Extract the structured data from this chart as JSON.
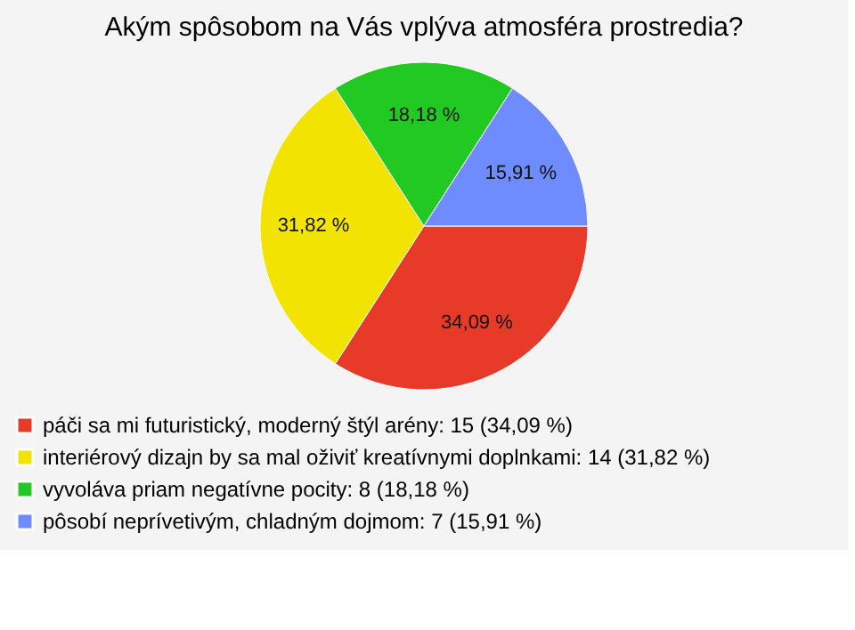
{
  "chart_data": {
    "type": "pie",
    "title": "Akým spôsobom na Vás vplýva atmosféra prostredia?",
    "categories": [
      "páči sa mi futuristický, moderný štýl arény: 15 (34,09 %)",
      "interiérový dizajn by sa mal oživiť kreatívnymi doplnkami: 14 (31,82 %)",
      "vyvoláva priam negatívne pocity: 8 (18,18 %)",
      "pôsobí neprívetivým, chladným dojmom: 7 (15,91 %)"
    ],
    "values": [
      34.09,
      31.82,
      18.18,
      15.91
    ],
    "value_labels": [
      "34,09 %",
      "31,82 %",
      "18,18 %",
      "15,91 %"
    ],
    "colors": [
      "#e83a28",
      "#f2e400",
      "#22c922",
      "#6f8cff"
    ],
    "legend": "bottom left"
  }
}
